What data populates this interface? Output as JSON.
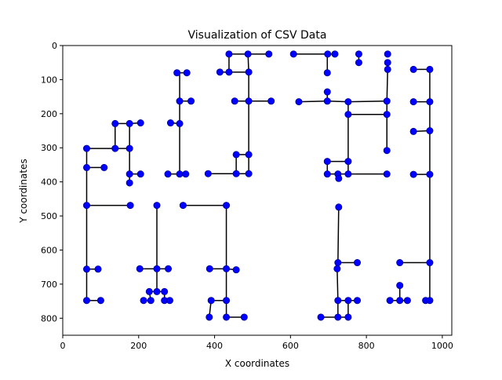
{
  "chart_data": {
    "type": "scatter",
    "title": "Visualization of CSV Data",
    "xlabel": "X coordinates",
    "ylabel": "Y coordinates",
    "xlim": [
      0,
      1025
    ],
    "ylim": [
      850,
      0
    ],
    "y_inverted": true,
    "x_ticks": [
      0,
      200,
      400,
      600,
      800,
      1000
    ],
    "y_ticks": [
      0,
      100,
      200,
      300,
      400,
      500,
      600,
      700,
      800
    ],
    "grid": false,
    "marker_color": "#0000ff",
    "line_color": "#000000",
    "points": [
      [
        438,
        25
      ],
      [
        488,
        25
      ],
      [
        543,
        25
      ],
      [
        414,
        78
      ],
      [
        438,
        78
      ],
      [
        490,
        78
      ],
      [
        453,
        163
      ],
      [
        490,
        163
      ],
      [
        549,
        163
      ],
      [
        608,
        25
      ],
      [
        698,
        25
      ],
      [
        717,
        25
      ],
      [
        780,
        25
      ],
      [
        780,
        50
      ],
      [
        856,
        25
      ],
      [
        856,
        50
      ],
      [
        856,
        70
      ],
      [
        697,
        80
      ],
      [
        697,
        136
      ],
      [
        622,
        165
      ],
      [
        697,
        163
      ],
      [
        752,
        165
      ],
      [
        854,
        163
      ],
      [
        752,
        202
      ],
      [
        854,
        202
      ],
      [
        854,
        308
      ],
      [
        924,
        70
      ],
      [
        967,
        70
      ],
      [
        924,
        165
      ],
      [
        967,
        165
      ],
      [
        924,
        252
      ],
      [
        967,
        250
      ],
      [
        924,
        378
      ],
      [
        967,
        378
      ],
      [
        301,
        80
      ],
      [
        327,
        80
      ],
      [
        308,
        163
      ],
      [
        338,
        163
      ],
      [
        284,
        227
      ],
      [
        308,
        229
      ],
      [
        277,
        377
      ],
      [
        308,
        377
      ],
      [
        324,
        377
      ],
      [
        138,
        229
      ],
      [
        176,
        229
      ],
      [
        205,
        227
      ],
      [
        63,
        302
      ],
      [
        138,
        302
      ],
      [
        176,
        302
      ],
      [
        63,
        358
      ],
      [
        109,
        358
      ],
      [
        176,
        377
      ],
      [
        205,
        377
      ],
      [
        176,
        403
      ],
      [
        457,
        320
      ],
      [
        490,
        320
      ],
      [
        383,
        376
      ],
      [
        457,
        376
      ],
      [
        490,
        376
      ],
      [
        697,
        340
      ],
      [
        752,
        340
      ],
      [
        697,
        377
      ],
      [
        725,
        377
      ],
      [
        727,
        390
      ],
      [
        752,
        377
      ],
      [
        854,
        377
      ],
      [
        63,
        469
      ],
      [
        178,
        469
      ],
      [
        248,
        469
      ],
      [
        317,
        469
      ],
      [
        431,
        469
      ],
      [
        727,
        474
      ],
      [
        63,
        656
      ],
      [
        93,
        656
      ],
      [
        203,
        655
      ],
      [
        248,
        655
      ],
      [
        278,
        655
      ],
      [
        248,
        722
      ],
      [
        228,
        722
      ],
      [
        268,
        722
      ],
      [
        213,
        748
      ],
      [
        232,
        748
      ],
      [
        268,
        748
      ],
      [
        282,
        748
      ],
      [
        63,
        748
      ],
      [
        100,
        748
      ],
      [
        387,
        655
      ],
      [
        431,
        655
      ],
      [
        457,
        658
      ],
      [
        391,
        748
      ],
      [
        431,
        748
      ],
      [
        386,
        797
      ],
      [
        431,
        797
      ],
      [
        478,
        797
      ],
      [
        725,
        637
      ],
      [
        776,
        637
      ],
      [
        723,
        655
      ],
      [
        725,
        748
      ],
      [
        752,
        748
      ],
      [
        776,
        748
      ],
      [
        680,
        797
      ],
      [
        725,
        797
      ],
      [
        752,
        797
      ],
      [
        888,
        637
      ],
      [
        967,
        637
      ],
      [
        888,
        704
      ],
      [
        862,
        748
      ],
      [
        888,
        748
      ],
      [
        908,
        748
      ],
      [
        956,
        748
      ],
      [
        967,
        748
      ]
    ],
    "segments": [
      [
        [
          438,
          25
        ],
        [
          488,
          25
        ]
      ],
      [
        [
          488,
          25
        ],
        [
          543,
          25
        ]
      ],
      [
        [
          438,
          25
        ],
        [
          438,
          78
        ]
      ],
      [
        [
          414,
          78
        ],
        [
          438,
          78
        ]
      ],
      [
        [
          438,
          78
        ],
        [
          490,
          78
        ]
      ],
      [
        [
          488,
          25
        ],
        [
          490,
          78
        ]
      ],
      [
        [
          490,
          78
        ],
        [
          490,
          163
        ]
      ],
      [
        [
          453,
          163
        ],
        [
          490,
          163
        ]
      ],
      [
        [
          490,
          163
        ],
        [
          549,
          163
        ]
      ],
      [
        [
          490,
          163
        ],
        [
          490,
          320
        ]
      ],
      [
        [
          457,
          320
        ],
        [
          490,
          320
        ]
      ],
      [
        [
          457,
          320
        ],
        [
          457,
          376
        ]
      ],
      [
        [
          383,
          376
        ],
        [
          457,
          376
        ]
      ],
      [
        [
          457,
          376
        ],
        [
          490,
          376
        ]
      ],
      [
        [
          490,
          320
        ],
        [
          490,
          376
        ]
      ],
      [
        [
          608,
          25
        ],
        [
          698,
          25
        ]
      ],
      [
        [
          698,
          25
        ],
        [
          717,
          25
        ]
      ],
      [
        [
          697,
          25
        ],
        [
          697,
          80
        ]
      ],
      [
        [
          697,
          136
        ],
        [
          697,
          163
        ]
      ],
      [
        [
          622,
          165
        ],
        [
          697,
          163
        ]
      ],
      [
        [
          697,
          163
        ],
        [
          752,
          165
        ]
      ],
      [
        [
          752,
          165
        ],
        [
          854,
          163
        ]
      ],
      [
        [
          752,
          165
        ],
        [
          752,
          202
        ]
      ],
      [
        [
          752,
          202
        ],
        [
          854,
          202
        ]
      ],
      [
        [
          854,
          163
        ],
        [
          854,
          308
        ]
      ],
      [
        [
          752,
          202
        ],
        [
          752,
          340
        ]
      ],
      [
        [
          697,
          340
        ],
        [
          752,
          340
        ]
      ],
      [
        [
          697,
          340
        ],
        [
          697,
          377
        ]
      ],
      [
        [
          697,
          377
        ],
        [
          725,
          377
        ]
      ],
      [
        [
          725,
          377
        ],
        [
          752,
          377
        ]
      ],
      [
        [
          752,
          340
        ],
        [
          752,
          377
        ]
      ],
      [
        [
          752,
          377
        ],
        [
          854,
          377
        ]
      ],
      [
        [
          725,
          377
        ],
        [
          727,
          390
        ]
      ],
      [
        [
          780,
          25
        ],
        [
          780,
          50
        ]
      ],
      [
        [
          856,
          50
        ],
        [
          856,
          70
        ]
      ],
      [
        [
          856,
          70
        ],
        [
          854,
          163
        ]
      ],
      [
        [
          924,
          70
        ],
        [
          967,
          70
        ]
      ],
      [
        [
          967,
          70
        ],
        [
          967,
          165
        ]
      ],
      [
        [
          924,
          165
        ],
        [
          967,
          165
        ]
      ],
      [
        [
          967,
          165
        ],
        [
          967,
          250
        ]
      ],
      [
        [
          924,
          252
        ],
        [
          967,
          250
        ]
      ],
      [
        [
          967,
          250
        ],
        [
          967,
          378
        ]
      ],
      [
        [
          924,
          378
        ],
        [
          967,
          378
        ]
      ],
      [
        [
          967,
          378
        ],
        [
          967,
          637
        ]
      ],
      [
        [
          888,
          637
        ],
        [
          967,
          637
        ]
      ],
      [
        [
          967,
          637
        ],
        [
          967,
          748
        ]
      ],
      [
        [
          956,
          748
        ],
        [
          967,
          748
        ]
      ],
      [
        [
          888,
          704
        ],
        [
          888,
          748
        ]
      ],
      [
        [
          862,
          748
        ],
        [
          888,
          748
        ]
      ],
      [
        [
          888,
          748
        ],
        [
          908,
          748
        ]
      ],
      [
        [
          301,
          80
        ],
        [
          327,
          80
        ]
      ],
      [
        [
          308,
          80
        ],
        [
          308,
          163
        ]
      ],
      [
        [
          308,
          163
        ],
        [
          338,
          163
        ]
      ],
      [
        [
          308,
          163
        ],
        [
          308,
          229
        ]
      ],
      [
        [
          284,
          227
        ],
        [
          308,
          229
        ]
      ],
      [
        [
          308,
          229
        ],
        [
          308,
          377
        ]
      ],
      [
        [
          277,
          377
        ],
        [
          308,
          377
        ]
      ],
      [
        [
          308,
          377
        ],
        [
          324,
          377
        ]
      ],
      [
        [
          138,
          229
        ],
        [
          176,
          229
        ]
      ],
      [
        [
          176,
          229
        ],
        [
          205,
          227
        ]
      ],
      [
        [
          138,
          229
        ],
        [
          138,
          302
        ]
      ],
      [
        [
          63,
          302
        ],
        [
          138,
          302
        ]
      ],
      [
        [
          138,
          302
        ],
        [
          176,
          302
        ]
      ],
      [
        [
          176,
          229
        ],
        [
          176,
          302
        ]
      ],
      [
        [
          176,
          302
        ],
        [
          176,
          377
        ]
      ],
      [
        [
          176,
          377
        ],
        [
          205,
          377
        ]
      ],
      [
        [
          176,
          377
        ],
        [
          176,
          403
        ]
      ],
      [
        [
          63,
          302
        ],
        [
          63,
          358
        ]
      ],
      [
        [
          63,
          358
        ],
        [
          109,
          358
        ]
      ],
      [
        [
          63,
          358
        ],
        [
          63,
          469
        ]
      ],
      [
        [
          63,
          469
        ],
        [
          178,
          469
        ]
      ],
      [
        [
          63,
          469
        ],
        [
          63,
          656
        ]
      ],
      [
        [
          63,
          656
        ],
        [
          93,
          656
        ]
      ],
      [
        [
          63,
          656
        ],
        [
          63,
          748
        ]
      ],
      [
        [
          63,
          748
        ],
        [
          100,
          748
        ]
      ],
      [
        [
          248,
          469
        ],
        [
          248,
          655
        ]
      ],
      [
        [
          203,
          655
        ],
        [
          248,
          655
        ]
      ],
      [
        [
          248,
          655
        ],
        [
          278,
          655
        ]
      ],
      [
        [
          248,
          655
        ],
        [
          248,
          722
        ]
      ],
      [
        [
          228,
          722
        ],
        [
          268,
          722
        ]
      ],
      [
        [
          228,
          722
        ],
        [
          232,
          748
        ]
      ],
      [
        [
          213,
          748
        ],
        [
          232,
          748
        ]
      ],
      [
        [
          268,
          722
        ],
        [
          268,
          748
        ]
      ],
      [
        [
          268,
          748
        ],
        [
          282,
          748
        ]
      ],
      [
        [
          317,
          469
        ],
        [
          431,
          469
        ]
      ],
      [
        [
          431,
          469
        ],
        [
          431,
          655
        ]
      ],
      [
        [
          387,
          655
        ],
        [
          431,
          655
        ]
      ],
      [
        [
          431,
          655
        ],
        [
          457,
          658
        ]
      ],
      [
        [
          431,
          655
        ],
        [
          431,
          748
        ]
      ],
      [
        [
          391,
          748
        ],
        [
          431,
          748
        ]
      ],
      [
        [
          391,
          748
        ],
        [
          386,
          797
        ]
      ],
      [
        [
          431,
          748
        ],
        [
          431,
          797
        ]
      ],
      [
        [
          431,
          797
        ],
        [
          478,
          797
        ]
      ],
      [
        [
          727,
          474
        ],
        [
          725,
          637
        ]
      ],
      [
        [
          725,
          637
        ],
        [
          776,
          637
        ]
      ],
      [
        [
          725,
          637
        ],
        [
          723,
          655
        ]
      ],
      [
        [
          723,
          655
        ],
        [
          725,
          748
        ]
      ],
      [
        [
          725,
          748
        ],
        [
          752,
          748
        ]
      ],
      [
        [
          752,
          748
        ],
        [
          776,
          748
        ]
      ],
      [
        [
          725,
          748
        ],
        [
          725,
          797
        ]
      ],
      [
        [
          680,
          797
        ],
        [
          725,
          797
        ]
      ],
      [
        [
          725,
          797
        ],
        [
          752,
          797
        ]
      ],
      [
        [
          752,
          748
        ],
        [
          752,
          797
        ]
      ]
    ]
  }
}
